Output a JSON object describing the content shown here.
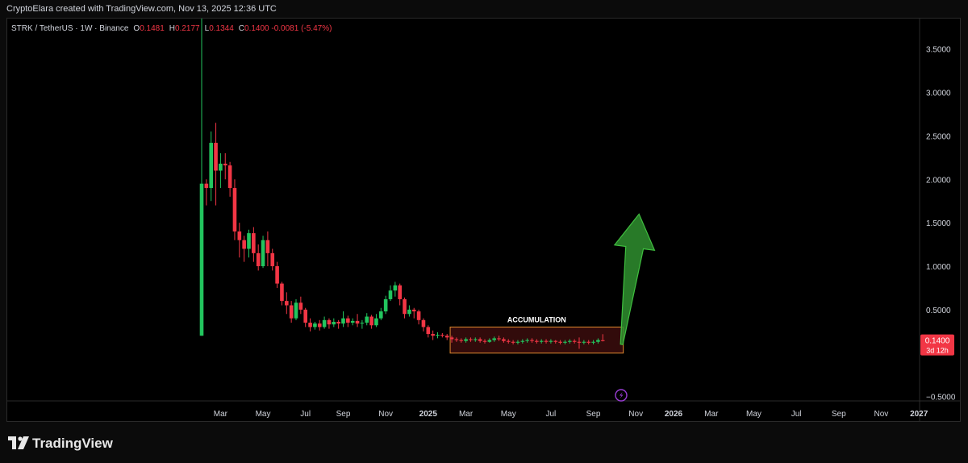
{
  "header": {
    "credit": "CryptoElara created with TradingView.com, Nov 13, 2025 12:36 UTC"
  },
  "legend": {
    "symbol": "STRK / TetherUS · 1W · Binance",
    "open_label": "O",
    "open": "0.1481",
    "high_label": "H",
    "high": "0.2177",
    "low_label": "L",
    "low": "0.1344",
    "close_label": "C",
    "close": "0.1400",
    "change": "-0.0081 (-5.47%)"
  },
  "price_badge": {
    "price": "0.1400",
    "countdown": "3d 12h"
  },
  "footer": {
    "brand": "TradingView"
  },
  "colors": {
    "up": "#22c55e",
    "down": "#f23645",
    "box_border": "#e08a2e",
    "arrow": "#2f8f2f",
    "lightning": "#9b3ed6"
  },
  "chart_data": {
    "type": "candlestick",
    "symbol": "STRK / TetherUS",
    "interval": "1W",
    "exchange": "Binance",
    "ylim": [
      -0.55,
      3.85
    ],
    "yticks": [
      -0.5,
      0.5,
      1.0,
      1.5,
      2.0,
      2.5,
      3.0,
      3.5
    ],
    "ytick_labels": [
      "−0.5000",
      "0.5000",
      "1.0000",
      "1.5000",
      "2.0000",
      "2.5000",
      "3.0000",
      "3.5000"
    ],
    "xtick_labels": [
      "Mar",
      "May",
      "Jul",
      "Sep",
      "Nov",
      "2025",
      "Mar",
      "May",
      "Jul",
      "Sep",
      "Nov",
      "2026",
      "Mar",
      "May",
      "Jul",
      "Sep",
      "Nov",
      "2027"
    ],
    "xtick_weeks": [
      4,
      13,
      22,
      30,
      39,
      48,
      56,
      65,
      74,
      83,
      92,
      100,
      108,
      117,
      126,
      135,
      144,
      152
    ],
    "candles": [
      [
        0.2,
        1.95,
        3.85,
        0.2
      ],
      [
        1.95,
        1.9,
        2.0,
        1.7
      ],
      [
        1.9,
        2.42,
        2.55,
        1.75
      ],
      [
        2.42,
        2.1,
        2.65,
        1.7
      ],
      [
        2.1,
        2.18,
        2.3,
        1.9
      ],
      [
        2.18,
        2.16,
        2.3,
        2.0
      ],
      [
        2.16,
        1.9,
        2.2,
        1.8
      ],
      [
        1.9,
        1.4,
        2.0,
        1.3
      ],
      [
        1.4,
        1.3,
        1.5,
        1.1
      ],
      [
        1.3,
        1.2,
        1.35,
        1.05
      ],
      [
        1.2,
        1.38,
        1.42,
        1.1
      ],
      [
        1.38,
        1.15,
        1.45,
        1.05
      ],
      [
        1.15,
        1.0,
        1.25,
        0.95
      ],
      [
        1.0,
        1.3,
        1.35,
        0.98
      ],
      [
        1.3,
        1.15,
        1.4,
        1.0
      ],
      [
        1.15,
        1.0,
        1.2,
        0.95
      ],
      [
        1.0,
        0.8,
        1.05,
        0.75
      ],
      [
        0.8,
        0.6,
        0.82,
        0.55
      ],
      [
        0.6,
        0.55,
        0.7,
        0.45
      ],
      [
        0.55,
        0.4,
        0.6,
        0.35
      ],
      [
        0.4,
        0.58,
        0.62,
        0.38
      ],
      [
        0.58,
        0.5,
        0.65,
        0.45
      ],
      [
        0.5,
        0.35,
        0.52,
        0.3
      ],
      [
        0.35,
        0.3,
        0.4,
        0.25
      ],
      [
        0.3,
        0.34,
        0.36,
        0.27
      ],
      [
        0.34,
        0.3,
        0.38,
        0.26
      ],
      [
        0.3,
        0.38,
        0.42,
        0.28
      ],
      [
        0.38,
        0.33,
        0.4,
        0.28
      ],
      [
        0.33,
        0.36,
        0.4,
        0.3
      ],
      [
        0.36,
        0.34,
        0.38,
        0.28
      ],
      [
        0.34,
        0.4,
        0.48,
        0.3
      ],
      [
        0.4,
        0.35,
        0.43,
        0.3
      ],
      [
        0.35,
        0.37,
        0.4,
        0.32
      ],
      [
        0.37,
        0.34,
        0.45,
        0.3
      ],
      [
        0.34,
        0.35,
        0.38,
        0.28
      ],
      [
        0.35,
        0.42,
        0.46,
        0.32
      ],
      [
        0.42,
        0.32,
        0.44,
        0.28
      ],
      [
        0.32,
        0.4,
        0.45,
        0.3
      ],
      [
        0.4,
        0.48,
        0.52,
        0.38
      ],
      [
        0.48,
        0.62,
        0.66,
        0.45
      ],
      [
        0.62,
        0.72,
        0.78,
        0.6
      ],
      [
        0.72,
        0.78,
        0.82,
        0.65
      ],
      [
        0.78,
        0.62,
        0.8,
        0.55
      ],
      [
        0.62,
        0.45,
        0.64,
        0.4
      ],
      [
        0.45,
        0.5,
        0.55,
        0.42
      ],
      [
        0.5,
        0.48,
        0.52,
        0.4
      ],
      [
        0.48,
        0.38,
        0.5,
        0.33
      ],
      [
        0.38,
        0.3,
        0.4,
        0.25
      ],
      [
        0.3,
        0.22,
        0.32,
        0.18
      ],
      [
        0.22,
        0.2,
        0.26,
        0.15
      ],
      [
        0.2,
        0.21,
        0.24,
        0.17
      ],
      [
        0.21,
        0.2,
        0.23,
        0.18
      ],
      [
        0.2,
        0.18,
        0.22,
        0.15
      ],
      [
        0.18,
        0.16,
        0.2,
        0.12
      ],
      [
        0.16,
        0.15,
        0.18,
        0.13
      ],
      [
        0.15,
        0.14,
        0.17,
        0.12
      ],
      [
        0.14,
        0.16,
        0.18,
        0.12
      ],
      [
        0.16,
        0.15,
        0.18,
        0.13
      ],
      [
        0.15,
        0.16,
        0.18,
        0.13
      ],
      [
        0.16,
        0.14,
        0.18,
        0.12
      ],
      [
        0.14,
        0.13,
        0.16,
        0.11
      ],
      [
        0.13,
        0.15,
        0.17,
        0.12
      ],
      [
        0.15,
        0.17,
        0.19,
        0.13
      ],
      [
        0.17,
        0.16,
        0.2,
        0.14
      ],
      [
        0.16,
        0.14,
        0.18,
        0.12
      ],
      [
        0.14,
        0.13,
        0.16,
        0.11
      ],
      [
        0.13,
        0.12,
        0.15,
        0.1
      ],
      [
        0.12,
        0.13,
        0.15,
        0.1
      ],
      [
        0.13,
        0.14,
        0.16,
        0.11
      ],
      [
        0.14,
        0.15,
        0.17,
        0.12
      ],
      [
        0.15,
        0.14,
        0.17,
        0.12
      ],
      [
        0.14,
        0.13,
        0.16,
        0.11
      ],
      [
        0.13,
        0.14,
        0.16,
        0.11
      ],
      [
        0.14,
        0.13,
        0.16,
        0.11
      ],
      [
        0.13,
        0.14,
        0.16,
        0.11
      ],
      [
        0.14,
        0.13,
        0.15,
        0.11
      ],
      [
        0.13,
        0.12,
        0.15,
        0.1
      ],
      [
        0.12,
        0.13,
        0.15,
        0.1
      ],
      [
        0.13,
        0.14,
        0.16,
        0.11
      ],
      [
        0.14,
        0.13,
        0.16,
        0.11
      ],
      [
        0.13,
        0.12,
        0.18,
        0.05
      ],
      [
        0.12,
        0.13,
        0.15,
        0.1
      ],
      [
        0.13,
        0.12,
        0.15,
        0.1
      ],
      [
        0.12,
        0.13,
        0.15,
        0.1
      ],
      [
        0.13,
        0.15,
        0.17,
        0.11
      ],
      [
        0.1481,
        0.14,
        0.2177,
        0.1344
      ]
    ],
    "annotations": [
      {
        "type": "rectangle",
        "label": "ACCUMULATION",
        "week_from": 53,
        "week_to": 89,
        "price_from": 0.0,
        "price_to": 0.3
      },
      {
        "type": "arrow",
        "direction": "up",
        "week_from": 89,
        "week_to": 92,
        "price_from": 0.1,
        "price_to": 1.6
      }
    ],
    "last_price": 0.14
  }
}
